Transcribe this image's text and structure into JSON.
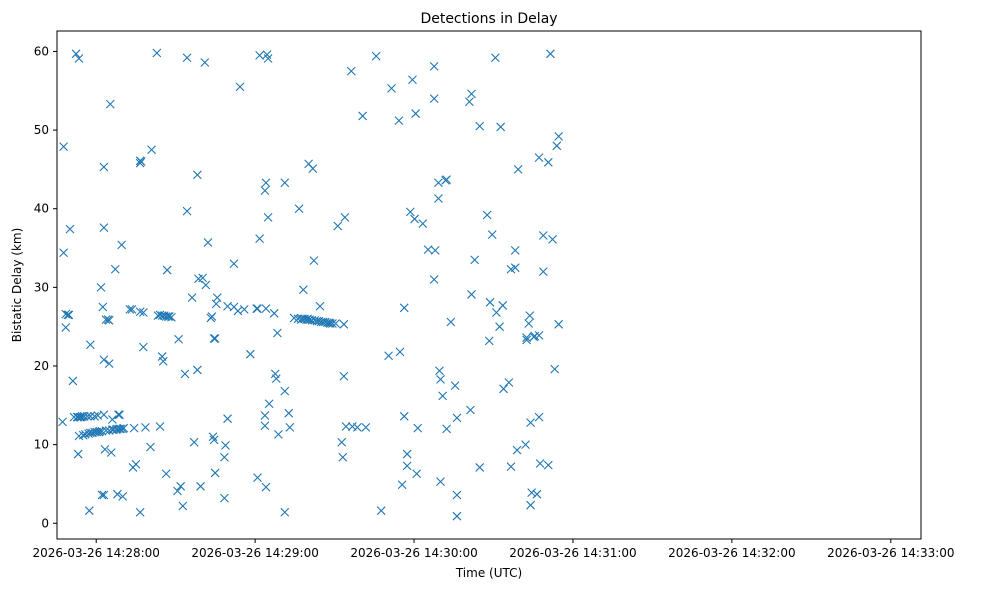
{
  "chart_data": {
    "type": "scatter",
    "title": "Detections in Delay",
    "xlabel": "Time (UTC)",
    "ylabel": "Bistatic Delay (km)",
    "x_unit": "seconds after 14:28:00",
    "xlim": [
      -14.8,
      311.4
    ],
    "ylim": [
      -2,
      62.6
    ],
    "xticks": [
      {
        "value": 0,
        "label": "2026-03-26 14:28:00"
      },
      {
        "value": 60,
        "label": "2026-03-26 14:29:00"
      },
      {
        "value": 120,
        "label": "2026-03-26 14:30:00"
      },
      {
        "value": 180,
        "label": "2026-03-26 14:31:00"
      },
      {
        "value": 240,
        "label": "2026-03-26 14:32:00"
      },
      {
        "value": 300,
        "label": "2026-03-26 14:33:00"
      }
    ],
    "yticks": [
      0,
      10,
      20,
      30,
      40,
      50,
      60
    ],
    "grid": false,
    "legend": "none",
    "marker": "x",
    "color": "#1f77b4",
    "series": [
      {
        "points": [
          [
            -12.7,
            12.9
          ],
          [
            -12.3,
            47.9
          ],
          [
            -12.3,
            34.4
          ],
          [
            -11.5,
            26.6
          ],
          [
            -11.5,
            24.9
          ],
          [
            -10.7,
            26.5
          ],
          [
            -10.3,
            26.5
          ],
          [
            -9.9,
            37.4
          ],
          [
            -8.8,
            18.1
          ],
          [
            -8.4,
            13.5
          ],
          [
            -7.6,
            59.7
          ],
          [
            -7.2,
            13.5
          ],
          [
            -6.8,
            8.8
          ],
          [
            -6.8,
            13.5
          ],
          [
            -6.5,
            59.1
          ],
          [
            -6.5,
            11.1
          ],
          [
            -6.1,
            13.5
          ],
          [
            -5.7,
            13.5
          ],
          [
            -5.3,
            13.6
          ],
          [
            -4.9,
            11.2
          ],
          [
            -4.5,
            13.6
          ],
          [
            -4.1,
            11.3
          ],
          [
            -3.3,
            13.6
          ],
          [
            -2.9,
            11.4
          ],
          [
            -2.6,
            1.6
          ],
          [
            -2.2,
            22.7
          ],
          [
            -2.2,
            13.6
          ],
          [
            -2.2,
            11.5
          ],
          [
            -1.4,
            11.5
          ],
          [
            -0.6,
            13.6
          ],
          [
            -0.6,
            11.6
          ],
          [
            0.2,
            11.6
          ],
          [
            0.6,
            13.7
          ],
          [
            1.0,
            11.6
          ],
          [
            1.4,
            11.7
          ],
          [
            1.8,
            30
          ],
          [
            2.2,
            11.7
          ],
          [
            2.2,
            3.6
          ],
          [
            2.5,
            27.5
          ],
          [
            2.9,
            37.6
          ],
          [
            2.9,
            20.8
          ],
          [
            2.9,
            45.3
          ],
          [
            2.9,
            13.8
          ],
          [
            2.9,
            3.6
          ],
          [
            3.3,
            9.4
          ],
          [
            3.7,
            25.9
          ],
          [
            3.7,
            11.8
          ],
          [
            4.5,
            25.9
          ],
          [
            4.9,
            25.8
          ],
          [
            4.9,
            20.3
          ],
          [
            4.9,
            11.8
          ],
          [
            5.3,
            53.3
          ],
          [
            5.7,
            9.0
          ],
          [
            6.1,
            13.2
          ],
          [
            6.1,
            11.9
          ],
          [
            6.5,
            11.9
          ],
          [
            7.2,
            32.3
          ],
          [
            7.6,
            11.9
          ],
          [
            8.0,
            12.0
          ],
          [
            8.0,
            3.7
          ],
          [
            8.4,
            13.8
          ],
          [
            8.8,
            13.8
          ],
          [
            8.8,
            12.0
          ],
          [
            9.2,
            12.0
          ],
          [
            9.6,
            35.4
          ],
          [
            10.0,
            12.0
          ],
          [
            10.0,
            3.4
          ],
          [
            10.4,
            12.1
          ],
          [
            12.7,
            27.2
          ],
          [
            13.5,
            27.2
          ],
          [
            13.9,
            7.1
          ],
          [
            14.3,
            12.1
          ],
          [
            15.0,
            7.5
          ],
          [
            16.6,
            46.1
          ],
          [
            16.6,
            45.8
          ],
          [
            16.6,
            26.9
          ],
          [
            16.6,
            1.4
          ],
          [
            17.0,
            46.0
          ],
          [
            17.8,
            26.8
          ],
          [
            17.8,
            22.4
          ],
          [
            18.6,
            12.2
          ],
          [
            20.5,
            9.7
          ],
          [
            20.9,
            47.5
          ],
          [
            22.9,
            59.8
          ],
          [
            23.3,
            26.4
          ],
          [
            24.1,
            12.3
          ],
          [
            24.1,
            26.5
          ],
          [
            24.9,
            26.4
          ],
          [
            24.9,
            21.2
          ],
          [
            25.3,
            20.6
          ],
          [
            25.7,
            26.4
          ],
          [
            26.4,
            26.3
          ],
          [
            26.4,
            6.3
          ],
          [
            26.8,
            32.2
          ],
          [
            27.2,
            26.3
          ],
          [
            27.6,
            26.3
          ],
          [
            28.4,
            26.2
          ],
          [
            30.7,
            4.1
          ],
          [
            31.1,
            23.4
          ],
          [
            31.9,
            4.7
          ],
          [
            32.7,
            2.2
          ],
          [
            33.5,
            19.0
          ],
          [
            34.3,
            39.7
          ],
          [
            34.3,
            59.2
          ],
          [
            36.2,
            28.7
          ],
          [
            37.0,
            10.3
          ],
          [
            38.2,
            19.5
          ],
          [
            38.2,
            44.3
          ],
          [
            38.6,
            31.1
          ],
          [
            39.4,
            4.7
          ],
          [
            40.2,
            31.2
          ],
          [
            41.0,
            58.6
          ],
          [
            41.4,
            30.3
          ],
          [
            42.2,
            35.7
          ],
          [
            43.3,
            26.1
          ],
          [
            43.7,
            26.3
          ],
          [
            44.1,
            11.0
          ],
          [
            44.5,
            23.5
          ],
          [
            44.5,
            10.6
          ],
          [
            44.9,
            23.5
          ],
          [
            44.9,
            6.4
          ],
          [
            45.3,
            27.9
          ],
          [
            45.7,
            28.7
          ],
          [
            48.4,
            3.2
          ],
          [
            48.4,
            8.4
          ],
          [
            48.8,
            9.9
          ],
          [
            49.6,
            27.6
          ],
          [
            49.6,
            13.3
          ],
          [
            52.0,
            33.0
          ],
          [
            52.0,
            27.5
          ],
          [
            53.5,
            27.0
          ],
          [
            54.3,
            55.5
          ],
          [
            55.9,
            27.2
          ],
          [
            58.2,
            21.5
          ],
          [
            60.6,
            27.3
          ],
          [
            60.9,
            5.8
          ],
          [
            60.9,
            27.3
          ],
          [
            61.7,
            36.2
          ],
          [
            61.7,
            59.5
          ],
          [
            63.7,
            12.4
          ],
          [
            63.7,
            13.7
          ],
          [
            63.7,
            42.3
          ],
          [
            64.1,
            43.3
          ],
          [
            64.1,
            27.3
          ],
          [
            64.1,
            4.6
          ],
          [
            64.5,
            59.6
          ],
          [
            64.9,
            38.9
          ],
          [
            64.9,
            59.1
          ],
          [
            65.3,
            15.2
          ],
          [
            67.2,
            26.7
          ],
          [
            67.6,
            19.0
          ],
          [
            68.0,
            18.4
          ],
          [
            68.4,
            24.2
          ],
          [
            68.8,
            11.3
          ],
          [
            71.2,
            43.3
          ],
          [
            71.2,
            16.8
          ],
          [
            71.2,
            1.4
          ],
          [
            72.7,
            14.0
          ],
          [
            73.1,
            12.2
          ],
          [
            74.7,
            26.1
          ],
          [
            76.2,
            26.0
          ],
          [
            76.6,
            40.0
          ],
          [
            77.4,
            25.9
          ],
          [
            77.8,
            26.0
          ],
          [
            78.2,
            29.7
          ],
          [
            78.6,
            26.0
          ],
          [
            79.4,
            25.9
          ],
          [
            79.8,
            26.0
          ],
          [
            80.2,
            45.7
          ],
          [
            80.6,
            25.9
          ],
          [
            81.4,
            25.8
          ],
          [
            81.8,
            45.1
          ],
          [
            82.2,
            33.4
          ],
          [
            82.5,
            25.8
          ],
          [
            83.3,
            25.7
          ],
          [
            84.1,
            25.7
          ],
          [
            84.5,
            27.6
          ],
          [
            84.9,
            25.6
          ],
          [
            85.7,
            25.6
          ],
          [
            86.5,
            25.6
          ],
          [
            87.3,
            25.5
          ],
          [
            88.0,
            25.5
          ],
          [
            88.4,
            25.4
          ],
          [
            89.2,
            25.4
          ],
          [
            90.4,
            25.4
          ],
          [
            91.2,
            37.8
          ],
          [
            92.7,
            10.3
          ],
          [
            93.1,
            8.4
          ],
          [
            93.5,
            25.3
          ],
          [
            93.5,
            18.7
          ],
          [
            93.9,
            38.9
          ],
          [
            94.3,
            12.3
          ],
          [
            96.3,
            57.5
          ],
          [
            96.7,
            12.3
          ],
          [
            98.6,
            12.2
          ],
          [
            100.6,
            51.8
          ],
          [
            101.8,
            12.2
          ],
          [
            105.7,
            59.4
          ],
          [
            107.6,
            1.6
          ],
          [
            110.4,
            21.3
          ],
          [
            111.5,
            55.3
          ],
          [
            114.3,
            51.2
          ],
          [
            114.7,
            21.8
          ],
          [
            115.5,
            4.9
          ],
          [
            116.3,
            13.6
          ],
          [
            116.3,
            27.4
          ],
          [
            117.4,
            8.8
          ],
          [
            117.4,
            7.3
          ],
          [
            118.6,
            39.6
          ],
          [
            119.4,
            56.4
          ],
          [
            120.2,
            38.7
          ],
          [
            120.6,
            52.1
          ],
          [
            121.0,
            6.3
          ],
          [
            121.4,
            12.1
          ],
          [
            123.3,
            38.1
          ],
          [
            125.3,
            34.8
          ],
          [
            127.6,
            31.0
          ],
          [
            127.6,
            54.0
          ],
          [
            127.6,
            58.1
          ],
          [
            128.0,
            34.7
          ],
          [
            129.2,
            43.3
          ],
          [
            129.2,
            41.3
          ],
          [
            129.6,
            19.4
          ],
          [
            130.0,
            5.3
          ],
          [
            130.0,
            18.3
          ],
          [
            130.8,
            16.2
          ],
          [
            131.9,
            43.6
          ],
          [
            132.3,
            43.7
          ],
          [
            132.3,
            12.0
          ],
          [
            133.9,
            25.6
          ],
          [
            135.5,
            17.5
          ],
          [
            136.2,
            13.4
          ],
          [
            136.2,
            3.6
          ],
          [
            136.2,
            0.9
          ],
          [
            140.9,
            53.6
          ],
          [
            141.7,
            54.6
          ],
          [
            141.3,
            14.4
          ],
          [
            141.7,
            29.1
          ],
          [
            142.9,
            33.5
          ],
          [
            144.8,
            50.5
          ],
          [
            144.8,
            7.1
          ],
          [
            147.6,
            39.2
          ],
          [
            148.4,
            23.2
          ],
          [
            148.7,
            28.1
          ],
          [
            149.5,
            36.7
          ],
          [
            150.7,
            59.2
          ],
          [
            151.1,
            26.8
          ],
          [
            152.3,
            25.0
          ],
          [
            152.7,
            50.4
          ],
          [
            153.5,
            27.7
          ],
          [
            153.8,
            17.1
          ],
          [
            155.8,
            17.9
          ],
          [
            156.6,
            32.3
          ],
          [
            156.6,
            7.2
          ],
          [
            158.2,
            32.5
          ],
          [
            158.2,
            34.7
          ],
          [
            158.9,
            9.3
          ],
          [
            159.3,
            45.0
          ],
          [
            162.1,
            10.0
          ],
          [
            162.5,
            23.3
          ],
          [
            162.5,
            23.6
          ],
          [
            163.3,
            25.4
          ],
          [
            163.7,
            26.4
          ],
          [
            164.0,
            12.8
          ],
          [
            164.0,
            2.3
          ],
          [
            164.4,
            3.9
          ],
          [
            165.2,
            23.7
          ],
          [
            165.6,
            23.8
          ],
          [
            166.4,
            3.7
          ],
          [
            167.2,
            23.9
          ],
          [
            167.2,
            13.5
          ],
          [
            167.2,
            46.5
          ],
          [
            167.6,
            7.6
          ],
          [
            168.8,
            36.6
          ],
          [
            168.8,
            32.0
          ],
          [
            170.7,
            45.9
          ],
          [
            170.7,
            7.4
          ],
          [
            171.5,
            59.7
          ],
          [
            172.3,
            36.1
          ],
          [
            173.1,
            19.6
          ],
          [
            173.9,
            48.0
          ],
          [
            174.6,
            49.2
          ],
          [
            174.6,
            25.3
          ]
        ]
      }
    ]
  }
}
